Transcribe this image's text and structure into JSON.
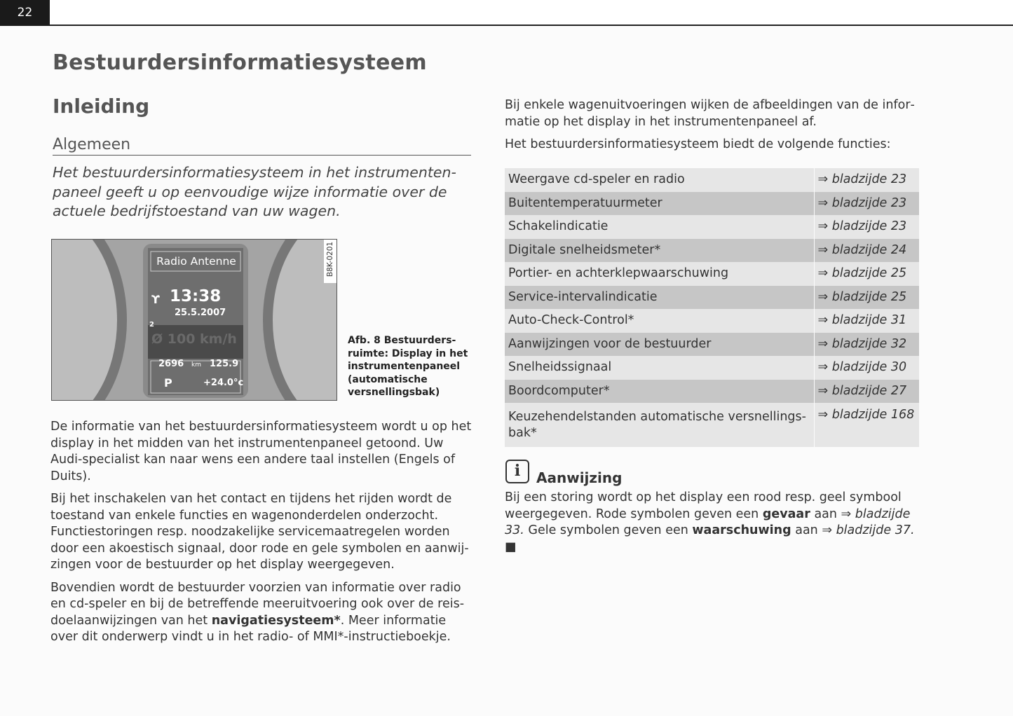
{
  "page_number": "22",
  "title": "Bestuurdersinformatiesysteem",
  "section": "Inleiding",
  "subsection": "Algemeen",
  "intro": "Het bestuurdersinformatiesysteem in het instrumenten­paneel geeft u op eenvoudige wijze informatie over de actuele bedrijfstoestand van uw wagen.",
  "figure": {
    "code": "B8K-0201",
    "display": {
      "header": "Radio Antenne",
      "time": "13:38",
      "date": "25.5.2007",
      "gear_index": "2",
      "speed": "Ø 100 km/h",
      "odometer": "2696",
      "odo_unit": "km",
      "trip": "125.9",
      "gear": "P",
      "temperature": "+24.0°c"
    },
    "caption": "Afb. 8  Bestuurders­ruimte: Display in het instrumentenpaneel (automatische versnel­lingsbak)"
  },
  "left_paragraphs": [
    "De informatie van het bestuurdersinformatiesysteem wordt u op het display in het midden van het instrumentenpaneel getoond. Uw Audi-specialist kan naar wens een andere taal instellen (Engels of Duits).",
    "Bij het inschakelen van het contact en tijdens het rijden wordt de toestand van enkele functies en wagenonderdelen onderzocht. Functiestoringen resp. noodzakelijke servicemaatregelen worden door een akoestisch signaal, door rode en gele symbolen en aanwij­zingen voor de bestuurder op het display weergegeven."
  ],
  "p3": {
    "a": "Bovendien wordt de bestuurder voorzien van informatie over radio en cd-speler en bij de betreffende meeruitvoering ook over de reis­doelaanwijzingen van het ",
    "b": "navigatiesysteem*",
    "c": ". Meer informatie over dit onderwerp vindt u in het radio- of MMI*-instructieboekje."
  },
  "right_paragraphs": [
    "Bij enkele wagenuitvoeringen wijken de afbeeldingen van de infor­matie op het display in het instrumentenpaneel af.",
    "Het bestuurdersinformatiesysteem biedt de volgende functies:"
  ],
  "functions": [
    {
      "label": "Weergave cd-speler en radio",
      "ref": "⇒ bladzijde 23"
    },
    {
      "label": "Buitentemperatuurmeter",
      "ref": "⇒ bladzijde 23"
    },
    {
      "label": "Schakelindicatie",
      "ref": "⇒ bladzijde 23"
    },
    {
      "label": "Digitale snelheidsmeter*",
      "ref": "⇒ bladzijde 24"
    },
    {
      "label": "Portier- en achterklepwaarschuwing",
      "ref": "⇒ bladzijde 25"
    },
    {
      "label": "Service-intervalindicatie",
      "ref": "⇒ bladzijde 25"
    },
    {
      "label": "Auto-Check-Control*",
      "ref": "⇒ bladzijde 31"
    },
    {
      "label": "Aanwijzingen voor de bestuurder",
      "ref": "⇒ bladzijde 32"
    },
    {
      "label": "Snelheidssignaal",
      "ref": "⇒ bladzijde 30"
    },
    {
      "label": "Boordcomputer*",
      "ref": "⇒ bladzijde 27"
    },
    {
      "label": "Keuzehendelstanden automatische versnellings­bak*",
      "ref": "⇒ bladzijde 168"
    }
  ],
  "note": {
    "icon": "info-icon",
    "title": "Aanwijzing",
    "t1": "Bij een storing wordt op het display een rood resp. geel symbool weergegeven. Rode symbolen geven een ",
    "b1": "gevaar",
    "t2": " aan ",
    "r1": "⇒ bladzijde 33.",
    "t3": " Gele symbolen geven een ",
    "b2": "waarschuwing",
    "t4": " aan ",
    "r2": "⇒ bladzijde 37.",
    "end": " ■"
  }
}
